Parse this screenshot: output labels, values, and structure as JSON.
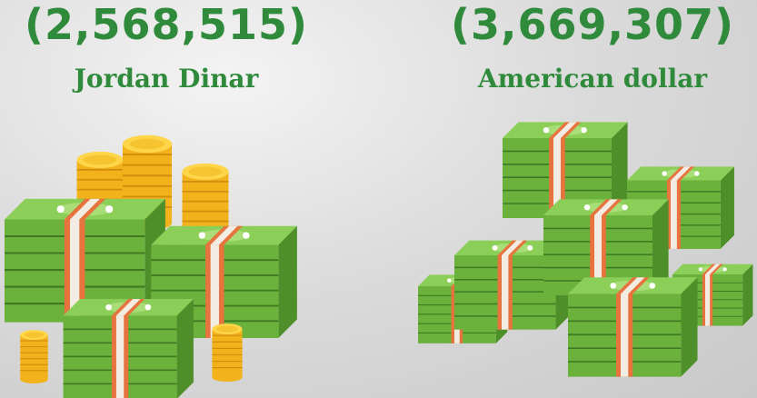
{
  "items": [
    {
      "amount": "(2,568,515)",
      "currency": "Jordan Dinar"
    },
    {
      "amount": "(3,669,307)",
      "currency": "American dollar"
    }
  ]
}
